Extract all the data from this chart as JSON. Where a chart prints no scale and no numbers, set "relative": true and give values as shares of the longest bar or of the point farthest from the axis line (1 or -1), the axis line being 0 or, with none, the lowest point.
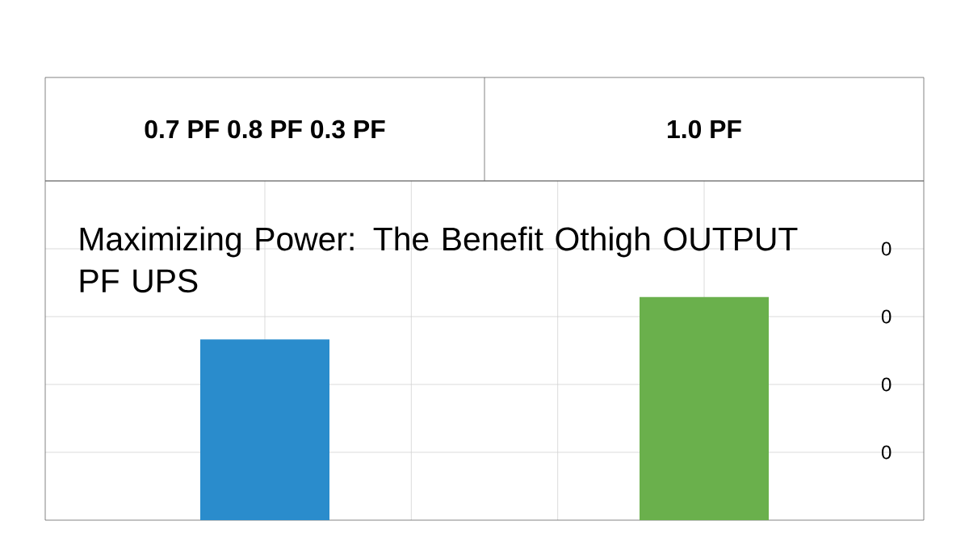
{
  "chart_data": {
    "type": "bar",
    "title": "Maximizing Power: The Benefit Othigh OUTPUT PF UPS",
    "categories": [
      "0.7 PF   0.8 PF  0.3 PF",
      "1.0 PF"
    ],
    "values": [
      0.81,
      1
    ],
    "colors": [
      "#2a8ccc",
      "#6ab04c"
    ],
    "relative": true,
    "grid": true,
    "annotations": [
      "0",
      "0",
      "0",
      "0"
    ]
  }
}
